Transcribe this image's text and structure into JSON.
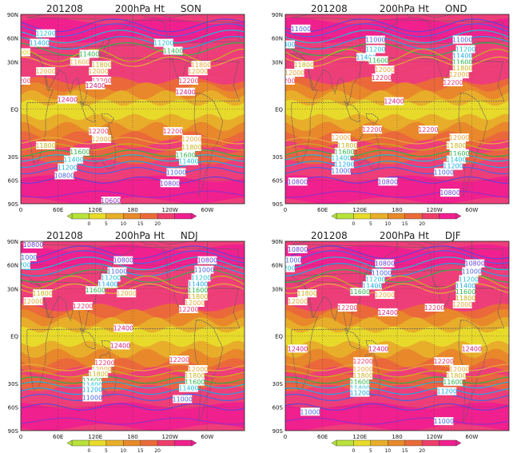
{
  "panels": [
    {
      "id": "SON",
      "title_year": "201208",
      "title_var": "200hPa Ht",
      "title_season": "SON",
      "labels": [
        {
          "v": "11200",
          "lon": 40,
          "lat": 48,
          "c": "#1fbcd8"
        },
        {
          "v": "11400",
          "lon": 30,
          "lat": 42,
          "c": "#19a9e6"
        },
        {
          "v": "11600",
          "lon": 0,
          "lat": 36,
          "c": "#e0d21a"
        },
        {
          "v": "11400",
          "lon": 110,
          "lat": 35,
          "c": "#2db44c"
        },
        {
          "v": "11600",
          "lon": 95,
          "lat": 30,
          "c": "#e8a93a"
        },
        {
          "v": "11800",
          "lon": 130,
          "lat": 28,
          "c": "#c9b11a"
        },
        {
          "v": "12000",
          "lon": 125,
          "lat": 24,
          "c": "#e8a93a"
        },
        {
          "v": "12200",
          "lon": 130,
          "lat": 18,
          "c": "#e83d6e"
        },
        {
          "v": "12000",
          "lon": 40,
          "lat": 24,
          "c": "#e8a93a"
        },
        {
          "v": "12200",
          "lon": 0,
          "lat": 18,
          "c": "#e83d6e"
        },
        {
          "v": "12400",
          "lon": 120,
          "lat": 15,
          "c": "#d41e78"
        },
        {
          "v": "11200",
          "lon": 230,
          "lat": 42,
          "c": "#1fbcd8"
        },
        {
          "v": "11400",
          "lon": 245,
          "lat": 37,
          "c": "#2db44c"
        },
        {
          "v": "11800",
          "lon": 290,
          "lat": 28,
          "c": "#e8a93a"
        },
        {
          "v": "12000",
          "lon": 285,
          "lat": 24,
          "c": "#e8a93a"
        },
        {
          "v": "12200",
          "lon": 270,
          "lat": 18,
          "c": "#e83d6e"
        },
        {
          "v": "12400",
          "lon": 265,
          "lat": 11,
          "c": "#d41e78"
        },
        {
          "v": "12400",
          "lon": 75,
          "lat": 6,
          "c": "#d41e78"
        },
        {
          "v": "12200",
          "lon": 125,
          "lat": -14,
          "c": "#e83d6e"
        },
        {
          "v": "12000",
          "lon": 130,
          "lat": -19,
          "c": "#e8a93a"
        },
        {
          "v": "11800",
          "lon": 40,
          "lat": -23,
          "c": "#c9b11a"
        },
        {
          "v": "11600",
          "lon": 95,
          "lat": -27,
          "c": "#2db44c"
        },
        {
          "v": "11400",
          "lon": 85,
          "lat": -32,
          "c": "#1fbcd8"
        },
        {
          "v": "11200",
          "lon": 75,
          "lat": -37,
          "c": "#19a9e6"
        },
        {
          "v": "10800",
          "lon": 70,
          "lat": -42,
          "c": "#4a64e0"
        },
        {
          "v": "12200",
          "lon": 245,
          "lat": -14,
          "c": "#e83d6e"
        },
        {
          "v": "12000",
          "lon": 275,
          "lat": -19,
          "c": "#e8a93a"
        },
        {
          "v": "11800",
          "lon": 275,
          "lat": -24,
          "c": "#c9b11a"
        },
        {
          "v": "11600",
          "lon": 265,
          "lat": -29,
          "c": "#2db44c"
        },
        {
          "v": "11400",
          "lon": 270,
          "lat": -33,
          "c": "#1fbcd8"
        },
        {
          "v": "11000",
          "lon": 250,
          "lat": -40,
          "c": "#4a64e0"
        },
        {
          "v": "10800",
          "lon": 240,
          "lat": -47,
          "c": "#6a3fd6"
        },
        {
          "v": "10600",
          "lon": 145,
          "lat": -58,
          "c": "#9b2dc4"
        }
      ]
    },
    {
      "id": "OND",
      "title_year": "201208",
      "title_var": "200hPa Ht",
      "title_season": "OND",
      "labels": [
        {
          "v": "11000",
          "lon": 25,
          "lat": 51,
          "c": "#4a64e0"
        },
        {
          "v": "11400",
          "lon": 0,
          "lat": 41,
          "c": "#19a9e6"
        },
        {
          "v": "11000",
          "lon": 145,
          "lat": 44,
          "c": "#4a64e0"
        },
        {
          "v": "11200",
          "lon": 145,
          "lat": 38,
          "c": "#1fbcd8"
        },
        {
          "v": "11400",
          "lon": 130,
          "lat": 33,
          "c": "#19a9e6"
        },
        {
          "v": "11600",
          "lon": 150,
          "lat": 31,
          "c": "#2db44c"
        },
        {
          "v": "11800",
          "lon": 30,
          "lat": 28,
          "c": "#c9b11a"
        },
        {
          "v": "12000",
          "lon": 15,
          "lat": 23,
          "c": "#e8a93a"
        },
        {
          "v": "12000",
          "lon": 160,
          "lat": 25,
          "c": "#e8a93a"
        },
        {
          "v": "12200",
          "lon": 155,
          "lat": 20,
          "c": "#e83d6e"
        },
        {
          "v": "12200",
          "lon": 0,
          "lat": 18,
          "c": "#e83d6e"
        },
        {
          "v": "11000",
          "lon": 285,
          "lat": 44,
          "c": "#4a64e0"
        },
        {
          "v": "11200",
          "lon": 290,
          "lat": 38,
          "c": "#1fbcd8"
        },
        {
          "v": "11400",
          "lon": 285,
          "lat": 34,
          "c": "#19a9e6"
        },
        {
          "v": "11600",
          "lon": 285,
          "lat": 30,
          "c": "#2db44c"
        },
        {
          "v": "11800",
          "lon": 285,
          "lat": 26,
          "c": "#c9b11a"
        },
        {
          "v": "12000",
          "lon": 280,
          "lat": 22,
          "c": "#e8a93a"
        },
        {
          "v": "12200",
          "lon": 270,
          "lat": 17,
          "c": "#e83d6e"
        },
        {
          "v": "12400",
          "lon": 175,
          "lat": 5,
          "c": "#d41e78"
        },
        {
          "v": "12200",
          "lon": 140,
          "lat": -13,
          "c": "#e83d6e"
        },
        {
          "v": "12000",
          "lon": 90,
          "lat": -18,
          "c": "#e8a93a"
        },
        {
          "v": "11800",
          "lon": 100,
          "lat": -23,
          "c": "#c9b11a"
        },
        {
          "v": "11600",
          "lon": 95,
          "lat": -27,
          "c": "#2db44c"
        },
        {
          "v": "11400",
          "lon": 90,
          "lat": -31,
          "c": "#1fbcd8"
        },
        {
          "v": "11200",
          "lon": 95,
          "lat": -35,
          "c": "#19a9e6"
        },
        {
          "v": "11000",
          "lon": 90,
          "lat": -39,
          "c": "#4a64e0"
        },
        {
          "v": "10800",
          "lon": 20,
          "lat": -46,
          "c": "#6a3fd6"
        },
        {
          "v": "10800",
          "lon": 165,
          "lat": -46,
          "c": "#6a3fd6"
        },
        {
          "v": "12200",
          "lon": 230,
          "lat": -13,
          "c": "#e83d6e"
        },
        {
          "v": "12000",
          "lon": 280,
          "lat": -18,
          "c": "#e8a93a"
        },
        {
          "v": "11800",
          "lon": 275,
          "lat": -23,
          "c": "#c9b11a"
        },
        {
          "v": "11600",
          "lon": 280,
          "lat": -28,
          "c": "#2db44c"
        },
        {
          "v": "11400",
          "lon": 275,
          "lat": -32,
          "c": "#1fbcd8"
        },
        {
          "v": "11200",
          "lon": 270,
          "lat": -36,
          "c": "#19a9e6"
        },
        {
          "v": "11000",
          "lon": 255,
          "lat": -40,
          "c": "#4a64e0"
        },
        {
          "v": "10800",
          "lon": 265,
          "lat": -53,
          "c": "#6a3fd6"
        }
      ]
    },
    {
      "id": "NDJ",
      "title_year": "201208",
      "title_var": "200hPa Ht",
      "title_season": "NDJ",
      "labels": [
        {
          "v": "10800",
          "lon": 20,
          "lat": 58,
          "c": "#6a3fd6"
        },
        {
          "v": "11000",
          "lon": 10,
          "lat": 50,
          "c": "#4a64e0"
        },
        {
          "v": "11200",
          "lon": 0,
          "lat": 45,
          "c": "#1fbcd8"
        },
        {
          "v": "10800",
          "lon": 165,
          "lat": 48,
          "c": "#6a3fd6"
        },
        {
          "v": "11000",
          "lon": 155,
          "lat": 41,
          "c": "#4a64e0"
        },
        {
          "v": "11200",
          "lon": 145,
          "lat": 37,
          "c": "#1fbcd8"
        },
        {
          "v": "11400",
          "lon": 140,
          "lat": 33,
          "c": "#19a9e6"
        },
        {
          "v": "11600",
          "lon": 120,
          "lat": 29,
          "c": "#2db44c"
        },
        {
          "v": "12000",
          "lon": 170,
          "lat": 27,
          "c": "#e8a93a"
        },
        {
          "v": "11800",
          "lon": 35,
          "lat": 27,
          "c": "#c9b11a"
        },
        {
          "v": "12000",
          "lon": 20,
          "lat": 22,
          "c": "#e8a93a"
        },
        {
          "v": "12200",
          "lon": 100,
          "lat": 19,
          "c": "#e83d6e"
        },
        {
          "v": "10800",
          "lon": 300,
          "lat": 48,
          "c": "#6a3fd6"
        },
        {
          "v": "11000",
          "lon": 295,
          "lat": 42,
          "c": "#4a64e0"
        },
        {
          "v": "11200",
          "lon": 290,
          "lat": 37,
          "c": "#1fbcd8"
        },
        {
          "v": "11400",
          "lon": 285,
          "lat": 33,
          "c": "#19a9e6"
        },
        {
          "v": "11600",
          "lon": 285,
          "lat": 29,
          "c": "#2db44c"
        },
        {
          "v": "11800",
          "lon": 285,
          "lat": 25,
          "c": "#c9b11a"
        },
        {
          "v": "12000",
          "lon": 280,
          "lat": 21,
          "c": "#e8a93a"
        },
        {
          "v": "12200",
          "lon": 270,
          "lat": 17,
          "c": "#e83d6e"
        },
        {
          "v": "12400",
          "lon": 165,
          "lat": 5,
          "c": "#d41e78"
        },
        {
          "v": "12400",
          "lon": 160,
          "lat": -6,
          "c": "#d41e78"
        },
        {
          "v": "12200",
          "lon": 135,
          "lat": -17,
          "c": "#e83d6e"
        },
        {
          "v": "12000",
          "lon": 130,
          "lat": -21,
          "c": "#e8a93a"
        },
        {
          "v": "11800",
          "lon": 125,
          "lat": -24,
          "c": "#c9b11a"
        },
        {
          "v": "11600",
          "lon": 115,
          "lat": -28,
          "c": "#2db44c"
        },
        {
          "v": "11400",
          "lon": 115,
          "lat": -31,
          "c": "#1fbcd8"
        },
        {
          "v": "11200",
          "lon": 115,
          "lat": -34,
          "c": "#19a9e6"
        },
        {
          "v": "11000",
          "lon": 115,
          "lat": -39,
          "c": "#4a64e0"
        },
        {
          "v": "12200",
          "lon": 255,
          "lat": -15,
          "c": "#e83d6e"
        },
        {
          "v": "12000",
          "lon": 285,
          "lat": -21,
          "c": "#e8a93a"
        },
        {
          "v": "11800",
          "lon": 280,
          "lat": -25,
          "c": "#c9b11a"
        },
        {
          "v": "11600",
          "lon": 280,
          "lat": -29,
          "c": "#2db44c"
        },
        {
          "v": "11400",
          "lon": 270,
          "lat": -33,
          "c": "#1fbcd8"
        },
        {
          "v": "11000",
          "lon": 260,
          "lat": -40,
          "c": "#4a64e0"
        }
      ]
    },
    {
      "id": "DJF",
      "title_year": "201208",
      "title_var": "200hPa Ht",
      "title_season": "DJF",
      "labels": [
        {
          "v": "10800",
          "lon": 20,
          "lat": 55,
          "c": "#6a3fd6"
        },
        {
          "v": "11000",
          "lon": 10,
          "lat": 48,
          "c": "#4a64e0"
        },
        {
          "v": "11200",
          "lon": 0,
          "lat": 43,
          "c": "#1fbcd8"
        },
        {
          "v": "10800",
          "lon": 160,
          "lat": 46,
          "c": "#6a3fd6"
        },
        {
          "v": "11000",
          "lon": 155,
          "lat": 40,
          "c": "#4a64e0"
        },
        {
          "v": "11200",
          "lon": 145,
          "lat": 36,
          "c": "#1fbcd8"
        },
        {
          "v": "11400",
          "lon": 140,
          "lat": 32,
          "c": "#19a9e6"
        },
        {
          "v": "11600",
          "lon": 120,
          "lat": 28,
          "c": "#2db44c"
        },
        {
          "v": "12000",
          "lon": 160,
          "lat": 26,
          "c": "#e8a93a"
        },
        {
          "v": "11800",
          "lon": 35,
          "lat": 27,
          "c": "#c9b11a"
        },
        {
          "v": "12000",
          "lon": 20,
          "lat": 22,
          "c": "#e8a93a"
        },
        {
          "v": "12200",
          "lon": 100,
          "lat": 18,
          "c": "#e83d6e"
        },
        {
          "v": "12400",
          "lon": 165,
          "lat": 15,
          "c": "#d41e78"
        },
        {
          "v": "10800",
          "lon": 305,
          "lat": 46,
          "c": "#6a3fd6"
        },
        {
          "v": "11000",
          "lon": 300,
          "lat": 41,
          "c": "#4a64e0"
        },
        {
          "v": "11200",
          "lon": 295,
          "lat": 36,
          "c": "#1fbcd8"
        },
        {
          "v": "11400",
          "lon": 290,
          "lat": 32,
          "c": "#19a9e6"
        },
        {
          "v": "11600",
          "lon": 290,
          "lat": 28,
          "c": "#2db44c"
        },
        {
          "v": "11800",
          "lon": 290,
          "lat": 24,
          "c": "#c9b11a"
        },
        {
          "v": "12000",
          "lon": 285,
          "lat": 20,
          "c": "#e8a93a"
        },
        {
          "v": "12200",
          "lon": 240,
          "lat": 18,
          "c": "#e83d6e"
        },
        {
          "v": "12400",
          "lon": 20,
          "lat": -8,
          "c": "#d41e78"
        },
        {
          "v": "12400",
          "lon": 150,
          "lat": -8,
          "c": "#d41e78"
        },
        {
          "v": "12400",
          "lon": 300,
          "lat": -8,
          "c": "#d41e78"
        },
        {
          "v": "12200",
          "lon": 125,
          "lat": -16,
          "c": "#e83d6e"
        },
        {
          "v": "12000",
          "lon": 125,
          "lat": -21,
          "c": "#e8a93a"
        },
        {
          "v": "11800",
          "lon": 125,
          "lat": -25,
          "c": "#c9b11a"
        },
        {
          "v": "11600",
          "lon": 120,
          "lat": -29,
          "c": "#2db44c"
        },
        {
          "v": "11400",
          "lon": 120,
          "lat": -33,
          "c": "#1fbcd8"
        },
        {
          "v": "11200",
          "lon": 120,
          "lat": -36,
          "c": "#19a9e6"
        },
        {
          "v": "12200",
          "lon": 255,
          "lat": -16,
          "c": "#e83d6e"
        },
        {
          "v": "12000",
          "lon": 280,
          "lat": -21,
          "c": "#e8a93a"
        },
        {
          "v": "11800",
          "lon": 275,
          "lat": -25,
          "c": "#c9b11a"
        },
        {
          "v": "11600",
          "lon": 270,
          "lat": -29,
          "c": "#2db44c"
        },
        {
          "v": "11200",
          "lon": 260,
          "lat": -35,
          "c": "#19a9e6"
        },
        {
          "v": "11000",
          "lon": 40,
          "lat": -48,
          "c": "#4a64e0"
        },
        {
          "v": "11000",
          "lon": 255,
          "lat": -54,
          "c": "#4a64e0"
        }
      ]
    }
  ],
  "axes": {
    "x_ticks": [
      {
        "lon": 0,
        "label": "0"
      },
      {
        "lon": 60,
        "label": "60E"
      },
      {
        "lon": 120,
        "label": "120E"
      },
      {
        "lon": 180,
        "label": "180"
      },
      {
        "lon": 240,
        "label": "120W"
      },
      {
        "lon": 300,
        "label": "60W"
      }
    ],
    "y_ticks": [
      {
        "lat": 60,
        "label": "90N"
      },
      {
        "lat": 45,
        "label": "60N"
      },
      {
        "lat": 30,
        "label": "30N"
      },
      {
        "lat": 0,
        "label": "EQ"
      },
      {
        "lat": -30,
        "label": "30S"
      },
      {
        "lat": -45,
        "label": "60S"
      },
      {
        "lat": -60,
        "label": "90S"
      }
    ]
  },
  "colorbar": {
    "ticks": [
      "0",
      "5",
      "10",
      "15",
      "20"
    ],
    "colors": [
      "#b8e23a",
      "#e8dc2a",
      "#e8b02a",
      "#e88a2a",
      "#ea6a38",
      "#ee3e6a",
      "#f0208e"
    ]
  },
  "chart_data": {
    "type": "heatmap",
    "title": "201208 200hPa Ht",
    "panels": [
      "SON",
      "OND",
      "NDJ",
      "DJF"
    ],
    "contour_levels": [
      10600,
      10800,
      11000,
      11200,
      11400,
      11600,
      11800,
      12000,
      12200,
      12400
    ],
    "x_ticks": [
      "0",
      "60E",
      "120E",
      "180",
      "120W",
      "60W"
    ],
    "y_ticks": [
      "90N",
      "60N",
      "30N",
      "EQ",
      "30S",
      "60S",
      "90S"
    ],
    "colorbar_ticks": [
      0,
      5,
      10,
      15,
      20
    ],
    "colorbar_range": [
      0,
      20
    ]
  }
}
